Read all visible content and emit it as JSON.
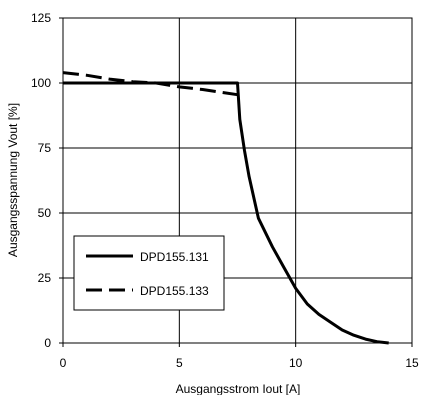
{
  "chart_data": {
    "type": "line",
    "title": "",
    "xlabel": "Ausgangsstrom Iout [A]",
    "ylabel": "Ausgangsspannung Vout [%]",
    "xlim": [
      0,
      15
    ],
    "ylim": [
      0,
      125
    ],
    "xticks": [
      0,
      5,
      10,
      15
    ],
    "yticks": [
      0,
      25,
      50,
      75,
      100,
      125
    ],
    "xtick_labels": [
      "0",
      "5",
      "10",
      "15"
    ],
    "ytick_labels": [
      "0",
      "25",
      "50",
      "75",
      "100",
      "125"
    ],
    "grid": true,
    "legend_position": "bottom-left",
    "series": [
      {
        "name": "DPD155.131",
        "style": "solid",
        "color": "#000000",
        "points": [
          [
            0,
            100
          ],
          [
            7.5,
            100
          ],
          [
            7.6,
            86
          ],
          [
            7.8,
            74
          ],
          [
            8.0,
            64
          ],
          [
            8.4,
            48
          ],
          [
            9.0,
            37
          ],
          [
            9.5,
            29
          ],
          [
            10.0,
            21
          ],
          [
            10.5,
            15
          ],
          [
            11.0,
            11
          ],
          [
            11.5,
            8
          ],
          [
            12.0,
            5
          ],
          [
            12.5,
            3
          ],
          [
            13.0,
            1.5
          ],
          [
            13.5,
            0.5
          ],
          [
            14.0,
            0
          ]
        ]
      },
      {
        "name": "DPD155.133",
        "style": "dashed",
        "color": "#000000",
        "points": [
          [
            0,
            104
          ],
          [
            1,
            103
          ],
          [
            2,
            101.5
          ],
          [
            3,
            100.5
          ],
          [
            4,
            100
          ],
          [
            5,
            98.5
          ],
          [
            6,
            97.5
          ],
          [
            7.5,
            95.5
          ]
        ]
      }
    ]
  }
}
